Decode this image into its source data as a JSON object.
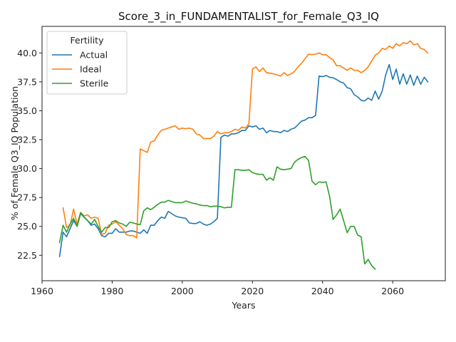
{
  "chart_data": {
    "type": "line",
    "title": "Score_3_in_FUNDAMENTALIST_for_Female_Q3_IQ",
    "xlabel": "Years",
    "ylabel": "% of Female Q3_IQ Population",
    "xlim": [
      1960,
      2075
    ],
    "ylim": [
      20.3,
      42.3
    ],
    "xticks": [
      1960,
      1980,
      2000,
      2020,
      2040,
      2060
    ],
    "yticks": [
      22.5,
      25.0,
      27.5,
      30.0,
      32.5,
      35.0,
      37.5,
      40.0
    ],
    "ytick_labels": [
      "22.5",
      "25.0",
      "27.5",
      "30.0",
      "32.5",
      "35.0",
      "37.5",
      "40.0"
    ],
    "grid": false,
    "legend": {
      "title": "Fertility",
      "placement": "upper-left"
    },
    "series": [
      {
        "name": "Actual",
        "color": "#1f77b4",
        "x": [
          1965,
          1966,
          1967,
          1968,
          1969,
          1970,
          1971,
          1972,
          1973,
          1974,
          1975,
          1976,
          1977,
          1978,
          1979,
          1980,
          1981,
          1982,
          1983,
          1984,
          1985,
          1986,
          1987,
          1988,
          1989,
          1990,
          1991,
          1992,
          1993,
          1994,
          1995,
          1996,
          1997,
          1998,
          1999,
          2000,
          2001,
          2002,
          2003,
          2004,
          2005,
          2006,
          2007,
          2008,
          2009,
          2010,
          2011,
          2012,
          2013,
          2014,
          2015,
          2016,
          2017,
          2018,
          2019,
          2020,
          2021,
          2022,
          2023,
          2024,
          2025,
          2026,
          2027,
          2028,
          2029,
          2030,
          2031,
          2032,
          2033,
          2034,
          2035,
          2036,
          2037,
          2038,
          2039,
          2040,
          2041,
          2042,
          2043,
          2044,
          2045,
          2046,
          2047,
          2048,
          2049,
          2050,
          2051,
          2052,
          2053,
          2054,
          2055,
          2056,
          2057,
          2058,
          2059,
          2060,
          2061,
          2062,
          2063,
          2064,
          2065,
          2066,
          2067,
          2068,
          2069,
          2070
        ],
        "y": [
          22.4,
          24.5,
          24.1,
          24.8,
          25.5,
          25.0,
          26.1,
          25.8,
          25.5,
          25.1,
          25.2,
          24.8,
          24.2,
          24.1,
          24.4,
          24.4,
          24.8,
          24.5,
          24.5,
          24.5,
          24.6,
          24.6,
          24.5,
          24.4,
          24.7,
          24.4,
          25.1,
          25.1,
          25.5,
          25.8,
          25.7,
          26.3,
          26.1,
          25.9,
          25.8,
          25.75,
          25.7,
          25.3,
          25.25,
          25.25,
          25.4,
          25.2,
          25.1,
          25.2,
          25.4,
          25.7,
          32.7,
          32.9,
          32.8,
          33.0,
          33.0,
          33.1,
          33.3,
          33.3,
          33.7,
          33.6,
          33.7,
          33.4,
          33.5,
          33.1,
          33.3,
          33.2,
          33.2,
          33.1,
          33.3,
          33.2,
          33.4,
          33.5,
          33.8,
          34.1,
          34.2,
          34.4,
          34.4,
          34.6,
          38.0,
          37.95,
          38.05,
          37.9,
          37.85,
          37.7,
          37.5,
          37.4,
          37.0,
          36.9,
          36.4,
          36.2,
          35.9,
          35.85,
          36.1,
          35.9,
          36.7,
          36.0,
          36.7,
          38.1,
          39.0,
          37.7,
          38.6,
          37.3,
          38.2,
          37.3,
          38.1,
          37.2,
          38.0,
          37.3,
          37.9,
          37.5
        ]
      },
      {
        "name": "Ideal",
        "color": "#ff7f0e",
        "x": [
          1966,
          1967,
          1968,
          1969,
          1970,
          1971,
          1972,
          1973,
          1974,
          1975,
          1976,
          1977,
          1978,
          1979,
          1980,
          1981,
          1982,
          1983,
          1984,
          1985,
          1986,
          1987,
          1988,
          1989,
          1990,
          1991,
          1992,
          1993,
          1994,
          1995,
          1996,
          1997,
          1998,
          1999,
          2000,
          2001,
          2002,
          2003,
          2004,
          2005,
          2006,
          2007,
          2008,
          2009,
          2010,
          2011,
          2012,
          2013,
          2014,
          2015,
          2016,
          2017,
          2018,
          2019,
          2020,
          2021,
          2022,
          2023,
          2024,
          2025,
          2026,
          2027,
          2028,
          2029,
          2030,
          2031,
          2032,
          2033,
          2034,
          2035,
          2036,
          2037,
          2038,
          2039,
          2040,
          2041,
          2042,
          2043,
          2044,
          2045,
          2046,
          2047,
          2048,
          2049,
          2050,
          2051,
          2052,
          2053,
          2054,
          2055,
          2056,
          2057,
          2058,
          2059,
          2060,
          2061,
          2062,
          2063,
          2064,
          2065,
          2066,
          2067,
          2068,
          2069,
          2070
        ],
        "y": [
          26.6,
          24.9,
          25.1,
          26.5,
          25.2,
          26.2,
          25.9,
          26.0,
          25.7,
          25.8,
          25.7,
          24.3,
          24.4,
          25.1,
          25.2,
          25.4,
          25.1,
          24.8,
          24.3,
          24.2,
          24.2,
          24.0,
          31.7,
          31.55,
          31.4,
          32.3,
          32.4,
          32.9,
          33.3,
          33.4,
          33.5,
          33.6,
          33.7,
          33.4,
          33.5,
          33.45,
          33.5,
          33.4,
          33.0,
          32.9,
          32.6,
          32.6,
          32.6,
          32.8,
          33.2,
          33.0,
          33.1,
          33.1,
          33.2,
          33.4,
          33.3,
          33.6,
          33.5,
          33.9,
          38.6,
          38.8,
          38.4,
          38.7,
          38.3,
          38.25,
          38.2,
          38.1,
          38.0,
          38.3,
          38.05,
          38.2,
          38.4,
          38.8,
          39.1,
          39.5,
          39.9,
          39.85,
          39.9,
          40.0,
          39.85,
          39.85,
          39.6,
          39.4,
          38.9,
          38.9,
          38.7,
          38.5,
          38.7,
          38.5,
          38.5,
          38.3,
          38.5,
          38.8,
          39.3,
          39.8,
          40.0,
          40.4,
          40.3,
          40.6,
          40.4,
          40.8,
          40.6,
          40.9,
          40.8,
          41.05,
          40.7,
          40.8,
          40.4,
          40.3,
          40.0
        ]
      },
      {
        "name": "Sterile",
        "color": "#2ca02c",
        "x": [
          1965,
          1966,
          1967,
          1968,
          1969,
          1970,
          1971,
          1972,
          1973,
          1974,
          1975,
          1976,
          1977,
          1978,
          1979,
          1980,
          1981,
          1982,
          1983,
          1984,
          1985,
          1986,
          1987,
          1988,
          1989,
          1990,
          1991,
          1992,
          1993,
          1994,
          1995,
          1996,
          1997,
          1998,
          1999,
          2000,
          2001,
          2002,
          2003,
          2004,
          2005,
          2006,
          2007,
          2008,
          2009,
          2010,
          2011,
          2012,
          2013,
          2014,
          2015,
          2016,
          2017,
          2018,
          2019,
          2020,
          2021,
          2022,
          2023,
          2024,
          2025,
          2026,
          2027,
          2028,
          2029,
          2030,
          2031,
          2032,
          2033,
          2034,
          2035,
          2036,
          2037,
          2038,
          2039,
          2040,
          2041,
          2042,
          2043,
          2044,
          2045,
          2046,
          2047,
          2048,
          2049,
          2050,
          2051,
          2052,
          2053,
          2054,
          2055
        ],
        "y": [
          23.6,
          25.1,
          24.5,
          25.2,
          25.7,
          25.0,
          26.2,
          25.8,
          25.5,
          25.2,
          25.6,
          25.0,
          24.5,
          24.9,
          24.9,
          25.4,
          25.5,
          25.3,
          25.2,
          25.0,
          25.35,
          25.3,
          25.2,
          25.15,
          26.35,
          26.6,
          26.45,
          26.65,
          26.9,
          27.1,
          27.1,
          27.25,
          27.15,
          27.05,
          27.05,
          27.05,
          27.2,
          27.1,
          27.0,
          26.95,
          26.85,
          26.8,
          26.8,
          26.7,
          26.75,
          26.75,
          26.7,
          26.6,
          26.65,
          26.65,
          29.9,
          29.9,
          29.85,
          29.85,
          29.9,
          29.65,
          29.55,
          29.5,
          29.5,
          29.0,
          29.2,
          29.0,
          30.15,
          29.95,
          29.9,
          29.95,
          30.0,
          30.55,
          30.8,
          30.95,
          31.05,
          30.7,
          28.9,
          28.6,
          28.85,
          28.8,
          28.85,
          27.6,
          25.6,
          26.0,
          26.5,
          25.5,
          24.45,
          25.0,
          25.0,
          24.25,
          24.1,
          21.75,
          22.15,
          21.6,
          21.3
        ]
      }
    ]
  }
}
